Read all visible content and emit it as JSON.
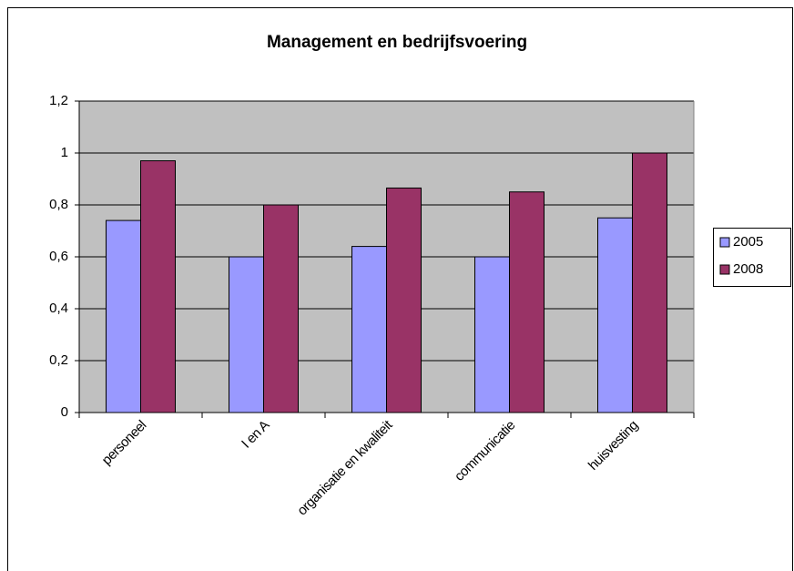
{
  "chart_data": {
    "type": "bar",
    "title": "Management en bedrijfsvoering",
    "categories": [
      "personeel",
      "I en A",
      "organisatie en kwaliteit",
      "communicatie",
      "huisvesting"
    ],
    "series": [
      {
        "name": "2005",
        "color": "#9999ff",
        "values": [
          0.74,
          0.6,
          0.64,
          0.6,
          0.75
        ]
      },
      {
        "name": "2008",
        "color": "#993366",
        "values": [
          0.97,
          0.8,
          0.865,
          0.85,
          1.0
        ]
      }
    ],
    "ylim": [
      0,
      1.2
    ],
    "yticks": [
      0,
      {
        "value": 0.2,
        "label": "0,2"
      },
      {
        "value": 0.4,
        "label": "0,4"
      },
      {
        "value": 0.6,
        "label": "0,6"
      },
      {
        "value": 0.8,
        "label": "0,8"
      },
      1,
      {
        "value": 1.2,
        "label": "1,2"
      }
    ],
    "grid": true,
    "legend": "right"
  }
}
